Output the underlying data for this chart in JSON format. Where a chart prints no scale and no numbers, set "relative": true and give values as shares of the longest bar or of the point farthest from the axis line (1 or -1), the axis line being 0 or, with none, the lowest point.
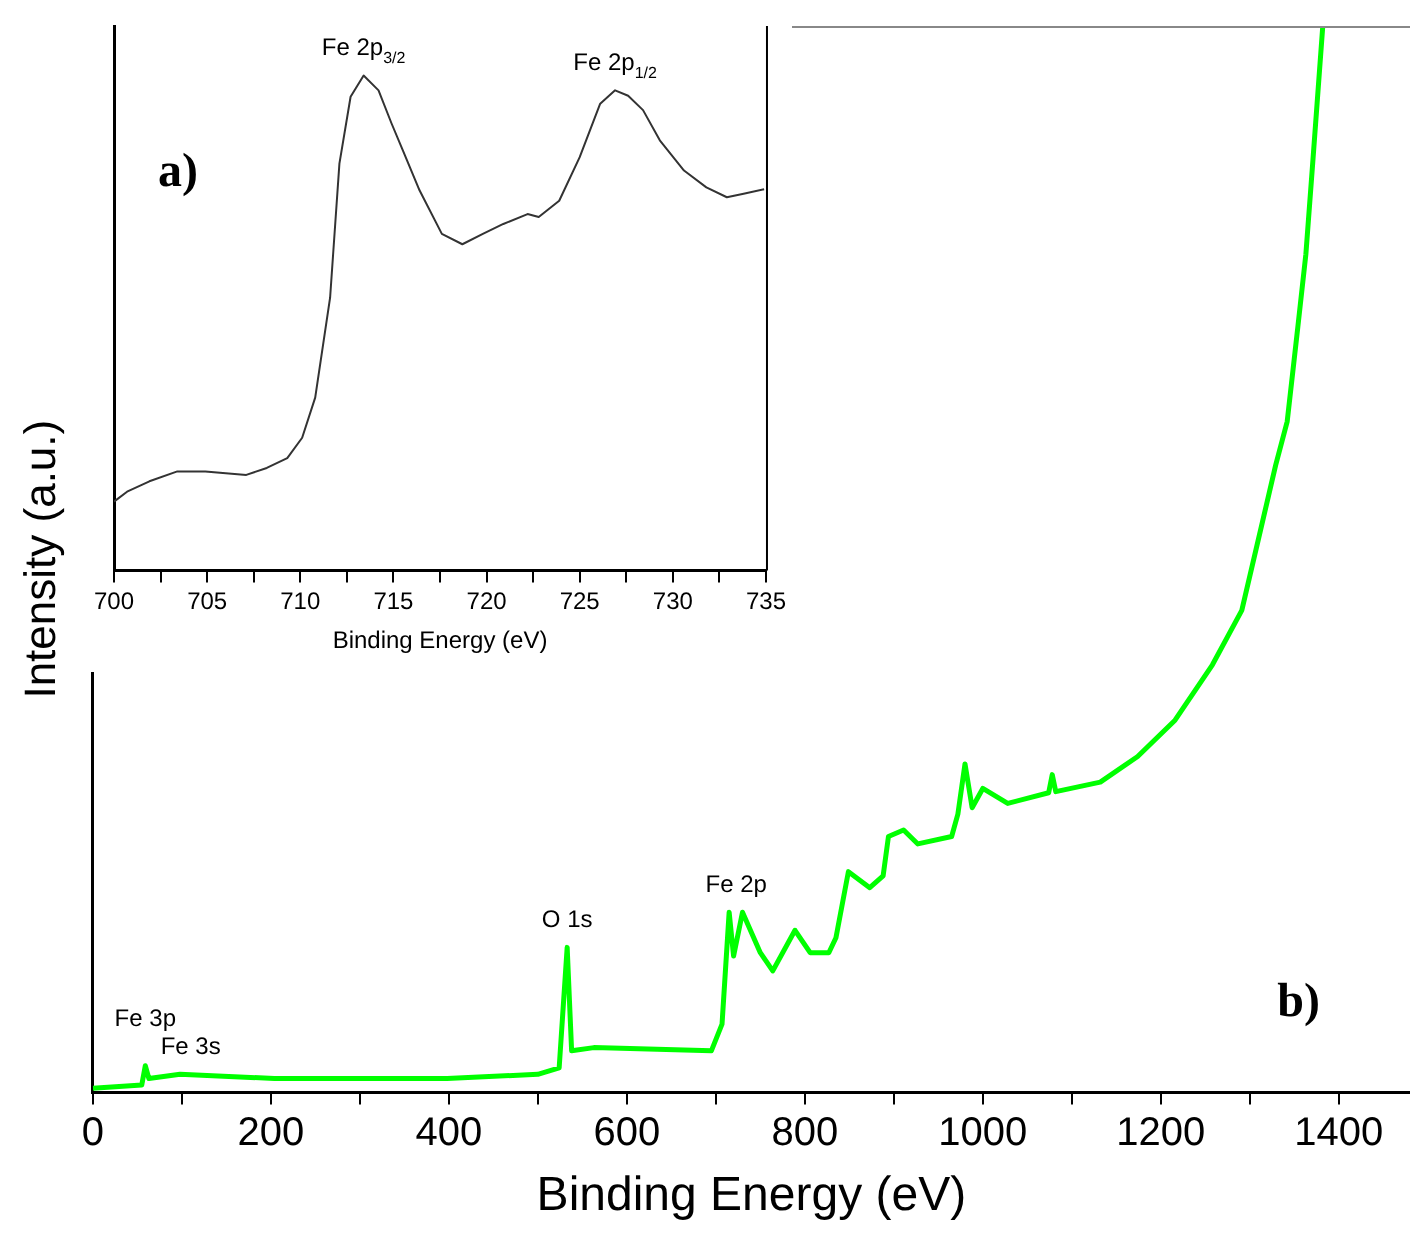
{
  "chart_data": [
    {
      "type": "line",
      "relative": true,
      "xlabel": "Binding Energy (eV)",
      "ylabel": "Intensity (a.u.)",
      "xlim": [
        0,
        1480
      ],
      "xticks": [
        0,
        {
          "value": 100,
          "label": null
        },
        200,
        {
          "value": 300,
          "label": null
        },
        400,
        {
          "value": 500,
          "label": null
        },
        600,
        {
          "value": 700,
          "label": null
        },
        800,
        {
          "value": 900,
          "label": null
        },
        1000,
        {
          "value": 1100,
          "label": null
        },
        1200,
        {
          "value": 1300,
          "label": null
        },
        1400
      ],
      "annotations": [
        {
          "text": "Fe 3s",
          "x": 110,
          "y": 0.017
        },
        {
          "text": "Fe 3p",
          "x": 59,
          "y": 0.025
        },
        {
          "text": "O 1s",
          "x": 533,
          "y": 0.136
        },
        {
          "text": "Fe 2p",
          "x": 723,
          "y": 0.169
        },
        "b)"
      ],
      "series": [
        {
          "color": "#00ff00",
          "x": [
            0,
            55,
            59,
            63,
            98,
            204,
            398,
            500,
            524,
            533,
            538,
            563,
            695,
            707,
            715,
            720,
            730,
            750,
            764,
            789,
            806,
            827,
            835,
            849,
            873,
            888,
            894,
            911,
            927,
            965,
            972,
            980,
            988,
            1000,
            1028,
            1074,
            1078,
            1082,
            1132,
            1174,
            1216,
            1258,
            1291,
            1312,
            1329,
            1342,
            1354,
            1363,
            1371,
            1382
          ],
          "values": [
            0.004,
            0.007,
            0.025,
            0.013,
            0.017,
            0.013,
            0.013,
            0.017,
            0.023,
            0.136,
            0.039,
            0.042,
            0.039,
            0.064,
            0.169,
            0.128,
            0.169,
            0.131,
            0.114,
            0.152,
            0.131,
            0.131,
            0.145,
            0.207,
            0.192,
            0.203,
            0.24,
            0.246,
            0.233,
            0.24,
            0.261,
            0.308,
            0.267,
            0.285,
            0.271,
            0.281,
            0.298,
            0.282,
            0.291,
            0.315,
            0.349,
            0.401,
            0.452,
            0.527,
            0.588,
            0.629,
            0.718,
            0.786,
            0.875,
            1
          ]
        }
      ]
    },
    {
      "type": "line",
      "relative": true,
      "xlabel": "Binding Energy (eV)",
      "xlim": [
        700,
        735
      ],
      "xticks": [
        700,
        {
          "value": 702.5,
          "label": null
        },
        705,
        {
          "value": 707.5,
          "label": null
        },
        710,
        {
          "value": 712.5,
          "label": null
        },
        715,
        {
          "value": 717.5,
          "label": null
        },
        720,
        {
          "value": 722.5,
          "label": null
        },
        725,
        {
          "value": 727.5,
          "label": null
        },
        730,
        {
          "value": 732.5,
          "label": null
        },
        735
      ],
      "annotations": [
        {
          "text": "Fe 2p$_{3/2}$",
          "x": 713.4,
          "y": 1
        },
        {
          "text": "Fe 2p$_{1/2}$",
          "x": 726.9,
          "y": 0.97
        },
        "a)"
      ],
      "series": [
        {
          "color": "#333333",
          "x": [
            700,
            700.7,
            701.9,
            703.4,
            704.9,
            707.1,
            708.2,
            709.3,
            710.1,
            710.8,
            711.6,
            712.1,
            712.7,
            713.4,
            714.2,
            714.9,
            715.5,
            716.4,
            717.6,
            718.7,
            719.8,
            720.9,
            722.2,
            722.8,
            723.9,
            725,
            726.1,
            726.9,
            727.6,
            728.4,
            729.3,
            730.6,
            731.8,
            732.9,
            733.8,
            734.9
          ],
          "values": [
            0.139,
            0.159,
            0.18,
            0.2,
            0.2,
            0.193,
            0.207,
            0.227,
            0.268,
            0.349,
            0.551,
            0.822,
            0.957,
            1,
            0.97,
            0.903,
            0.849,
            0.768,
            0.68,
            0.659,
            0.68,
            0.7,
            0.72,
            0.714,
            0.747,
            0.835,
            0.943,
            0.97,
            0.959,
            0.93,
            0.869,
            0.808,
            0.774,
            0.754,
            0.761,
            0.77
          ]
        }
      ]
    }
  ]
}
